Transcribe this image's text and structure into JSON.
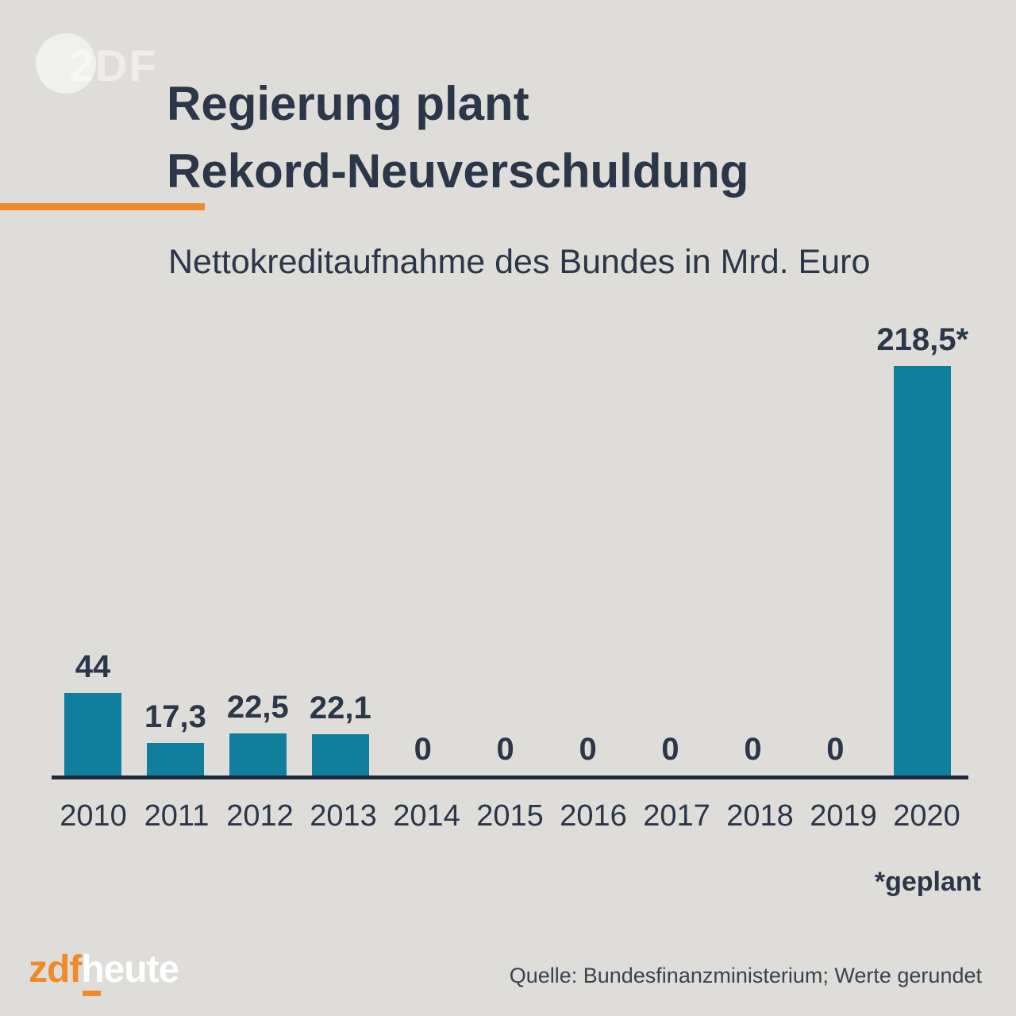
{
  "page": {
    "background_color": "#deddda",
    "accent_color": "#f08a28",
    "text_color": "#2b3648"
  },
  "branding": {
    "watermark_text": "2DF",
    "footer_logo_zdf": "zdf",
    "footer_logo_heute": "heute"
  },
  "header": {
    "title_line1": "Regierung plant",
    "title_line2": "Rekord-Neuverschuldung",
    "subtitle": "Nettokreditaufnahme des Bundes in Mrd. Euro"
  },
  "chart_data": {
    "type": "bar",
    "title": "Nettokreditaufnahme des Bundes in Mrd. Euro",
    "categories": [
      "2010",
      "2011",
      "2012",
      "2013",
      "2014",
      "2015",
      "2016",
      "2017",
      "2018",
      "2019",
      "2020"
    ],
    "values": [
      44,
      17.3,
      22.5,
      22.1,
      0,
      0,
      0,
      0,
      0,
      0,
      218.5
    ],
    "value_labels": [
      "44",
      "17,3",
      "22,5",
      "22,1",
      "0",
      "0",
      "0",
      "0",
      "0",
      "0",
      "218,5*"
    ],
    "xlabel": "",
    "ylabel": "Mrd. Euro",
    "ylim": [
      0,
      230
    ],
    "grid": false,
    "legend": "none",
    "bar_color": "#0f7f9d",
    "axis_color": "#1f2b3a"
  },
  "annotations": {
    "footnote": "*geplant"
  },
  "footer": {
    "source": "Quelle: Bundesfinanzministerium; Werte gerundet"
  }
}
